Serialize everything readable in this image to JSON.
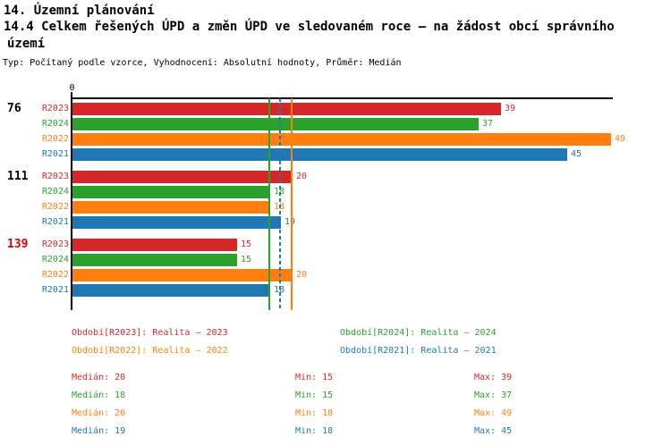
{
  "header": {
    "title_line1": "14. Územní plánování",
    "title_line2": "14.4 Celkem řešených ÚPD a změn ÚPD ve sledovaném roce – na žádost obcí správního",
    "title_line2_cont": "území",
    "meta": "Typ: Počítaný podle vzorce, Vyhodnocení: Absolutní hodnoty, Průměr: Medián"
  },
  "chart_data": {
    "type": "bar",
    "orientation": "horizontal",
    "x_origin_label": "0",
    "value_axis": {
      "min": 0,
      "max_shown": 49
    },
    "series": [
      {
        "id": "R2023",
        "row_label": "R2023",
        "color": "#d62728",
        "legend": "Období[R2023]: Realita – 2023",
        "median": 20,
        "min": 15,
        "max": 39,
        "median_line": "solid"
      },
      {
        "id": "R2024",
        "row_label": "R2024",
        "color": "#2ca02c",
        "legend": "Období[R2024]: Realita – 2024",
        "median": 18,
        "min": 15,
        "max": 37,
        "median_line": "solid"
      },
      {
        "id": "R2022",
        "row_label": "R2022",
        "color": "#ff7f0e",
        "legend": "Období[R2022]: Realita – 2022",
        "median": 20,
        "min": 18,
        "max": 49,
        "median_line": "solid"
      },
      {
        "id": "R2021",
        "row_label": "R2021",
        "color": "#1f77b4",
        "legend": "Období[R2021]: Realita – 2021",
        "median": 19,
        "min": 18,
        "max": 45,
        "median_line": "dashed"
      }
    ],
    "groups": [
      {
        "label": "76",
        "label_color": "#000000",
        "values": [
          39,
          37,
          49,
          45
        ]
      },
      {
        "label": "111",
        "label_color": "#000000",
        "values": [
          20,
          18,
          18,
          19
        ]
      },
      {
        "label": "139",
        "label_color": "#dd0000",
        "values": [
          15,
          15,
          20,
          18
        ]
      }
    ],
    "stats_labels": {
      "median": "Medián",
      "min": "Min",
      "max": "Max"
    }
  }
}
